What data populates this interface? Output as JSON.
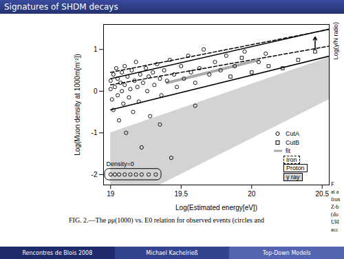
{
  "slide": {
    "title": "Signatures of SHDM decays",
    "footer": [
      "Rencontres de Blois 2008",
      "Michael Kachelrieß",
      "Top-Down Models"
    ],
    "side_panel": {
      "axis_label": "Log(γ/N ratio)",
      "text": [
        "F",
        "at a",
        "fron",
        "Z-b",
        "(do",
        "UH",
        "acc"
      ]
    }
  },
  "chart_data": {
    "type": "scatter",
    "caption": "FIG. 2.—The ρμ(1000) vs. E0 relation for observed events (circles and",
    "xlabel": "Log(Estimated energy[eV])",
    "ylabel": "Log(Muon density at 1000m[m⁻²])",
    "xlim": [
      18.95,
      20.55
    ],
    "xticks": [
      19,
      19.5,
      20,
      20.5
    ],
    "ylim": [
      -2.25,
      1.6
    ],
    "yticks": [
      -2,
      -1,
      0,
      1
    ],
    "series": [
      {
        "name": "γ ray",
        "type": "area",
        "color": "#d3d3d3",
        "x": [
          19.0,
          19.35,
          20.55
        ],
        "lower": [
          -2.25,
          -2.25,
          -0.2
        ],
        "upper": [
          -1.0,
          -0.59,
          0.81
        ]
      },
      {
        "name": "Iron",
        "type": "band",
        "line_style": "dashed",
        "color": "#000000",
        "x": [
          19.0,
          20.55
        ],
        "lower": [
          0.15,
          1.08
        ],
        "upper": [
          0.45,
          1.48
        ]
      },
      {
        "name": "Proton",
        "type": "band",
        "line_style": "solid",
        "color": "#000000",
        "x": [
          19.0,
          20.55
        ],
        "lower": [
          -0.45,
          0.84
        ],
        "upper": [
          0.3,
          1.49
        ]
      },
      {
        "name": "fit",
        "type": "line",
        "color": "#aaaaaa",
        "x": [
          19.4,
          20.05
        ],
        "y": [
          0.2,
          0.75
        ]
      },
      {
        "name": "CutA",
        "type": "scatter",
        "marker": "circle",
        "color": "#000000",
        "x": [
          19.0,
          19.0,
          19.01,
          19.02,
          19.02,
          19.03,
          19.04,
          19.05,
          19.05,
          19.06,
          19.07,
          19.08,
          19.08,
          19.09,
          19.1,
          19.1,
          19.11,
          19.12,
          19.13,
          19.14,
          19.15,
          19.16,
          19.17,
          19.18,
          19.19,
          19.2,
          19.21,
          19.22,
          19.23,
          19.25,
          19.26,
          19.27,
          19.28,
          19.3,
          19.31,
          19.33,
          19.35,
          19.36,
          19.38,
          19.4,
          19.42,
          19.43,
          19.45,
          19.47,
          19.5,
          19.52,
          19.55,
          19.57,
          19.6,
          19.63,
          19.66,
          19.7,
          19.74,
          19.78,
          19.82,
          19.88,
          19.95,
          20.05,
          20.1,
          19.35,
          19.6
        ],
        "y": [
          0.05,
          0.25,
          -0.2,
          0.4,
          -0.45,
          0.1,
          0.55,
          -0.1,
          0.3,
          -0.7,
          0.2,
          0.0,
          0.45,
          -0.3,
          0.15,
          0.6,
          -1.0,
          0.35,
          -0.15,
          0.05,
          0.5,
          -0.5,
          0.25,
          0.7,
          0.1,
          -0.25,
          0.4,
          -1.35,
          0.2,
          0.55,
          0.0,
          0.35,
          -0.6,
          0.45,
          0.15,
          0.65,
          0.3,
          -0.1,
          0.5,
          0.25,
          0.75,
          -1.6,
          0.4,
          0.1,
          0.6,
          0.3,
          0.85,
          0.45,
          0.2,
          0.55,
          1.0,
          0.4,
          0.7,
          0.5,
          0.85,
          0.6,
          0.95,
          0.7,
          0.9,
          -0.8,
          -0.35
        ]
      },
      {
        "name": "CutB",
        "type": "scatter",
        "marker": "square",
        "color": "#000000",
        "x": [
          19.85,
          19.93,
          20.0,
          20.12,
          20.22,
          20.33,
          20.45
        ],
        "y": [
          0.35,
          0.8,
          0.45,
          0.6,
          0.55,
          0.75,
          0.95
        ]
      }
    ],
    "arrows": [
      {
        "x": 20.45,
        "y_from": 1.0,
        "y_to": 1.3
      }
    ],
    "density_zero": {
      "label": "Density=0",
      "x": [
        19.0,
        19.03,
        19.06,
        19.1,
        19.14,
        19.18,
        19.22,
        19.27,
        19.32
      ],
      "y": [
        -2,
        -2,
        -2,
        -2,
        -2,
        -2,
        -2,
        -2,
        -2
      ]
    }
  }
}
